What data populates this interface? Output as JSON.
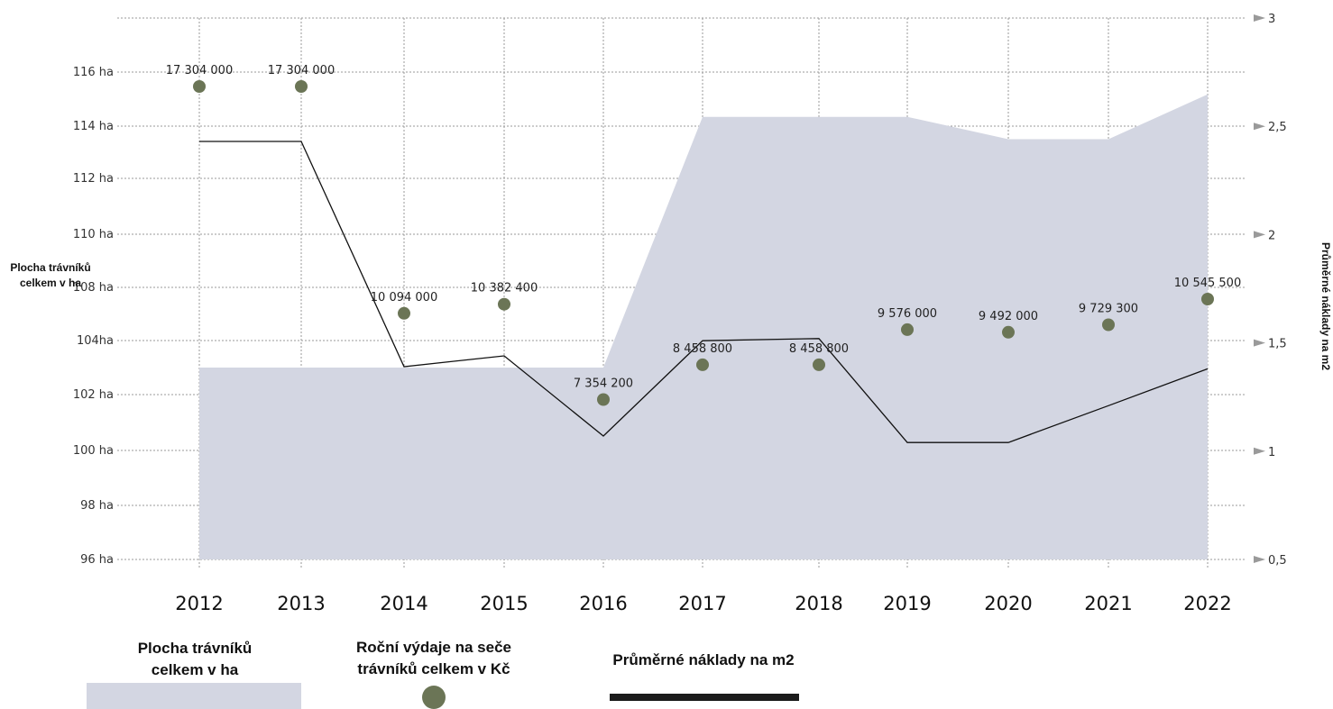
{
  "chart_data": {
    "type": "line",
    "categories": [
      "2012",
      "2013",
      "2014",
      "2015",
      "2016",
      "2017",
      "2018",
      "2019",
      "2020",
      "2021",
      "2022"
    ],
    "y_left": {
      "title_lines": [
        "Plocha trávníků",
        "celkem v ha"
      ],
      "tick_labels": [
        "96 ha",
        "98 ha",
        "100 ha",
        "102 ha",
        "104ha",
        "108 ha",
        "110 ha",
        "112 ha",
        "114 ha",
        "116 ha"
      ]
    },
    "y_right": {
      "title": "Průměrné náklady na m2",
      "range": [
        0.5,
        3
      ],
      "tick_values": [
        0.5,
        1,
        1.5,
        2,
        2.5,
        3
      ],
      "tick_labels": [
        "0,5",
        "1",
        "1,5",
        "2",
        "2,5",
        "3"
      ]
    },
    "grid": true,
    "legend_placement": "bottom",
    "series": [
      {
        "name": "Plocha trávníků celkem v ha",
        "kind": "area",
        "axis": "left",
        "color": "#d3d6e2",
        "values": [
          103,
          103,
          103,
          103,
          103,
          114,
          114,
          114,
          113,
          113,
          115
        ]
      },
      {
        "name": "Roční výdaje na seče trávníků celkem v Kč",
        "kind": "scatter",
        "axis": "right",
        "color": "#6b7556",
        "values": [
          17304000,
          17304000,
          10094000,
          10382400,
          7354200,
          8458800,
          8458800,
          9576000,
          9492000,
          9729300,
          10545500
        ],
        "value_labels": [
          "17 304 000",
          "17 304 000",
          "10 094 000",
          "10 382 400",
          "7 354 200",
          "8 458 800",
          "8 458 800",
          "9 576 000",
          "9 492 000",
          "9 729 300",
          "10 545 500"
        ]
      },
      {
        "name": "Průměrné náklady na m2",
        "kind": "line",
        "axis": "right",
        "color": "#111111",
        "values": [
          2.43,
          2.43,
          1.39,
          1.44,
          1.07,
          1.51,
          1.52,
          1.04,
          1.04,
          1.21,
          1.38
        ]
      }
    ]
  },
  "legend": {
    "area_label_lines": [
      "Plocha trávníků",
      "celkem v ha"
    ],
    "scatter_label_lines": [
      "Roční výdaje na seče",
      "trávníků celkem v Kč"
    ],
    "line_label": "Průměrné náklady na m2"
  }
}
